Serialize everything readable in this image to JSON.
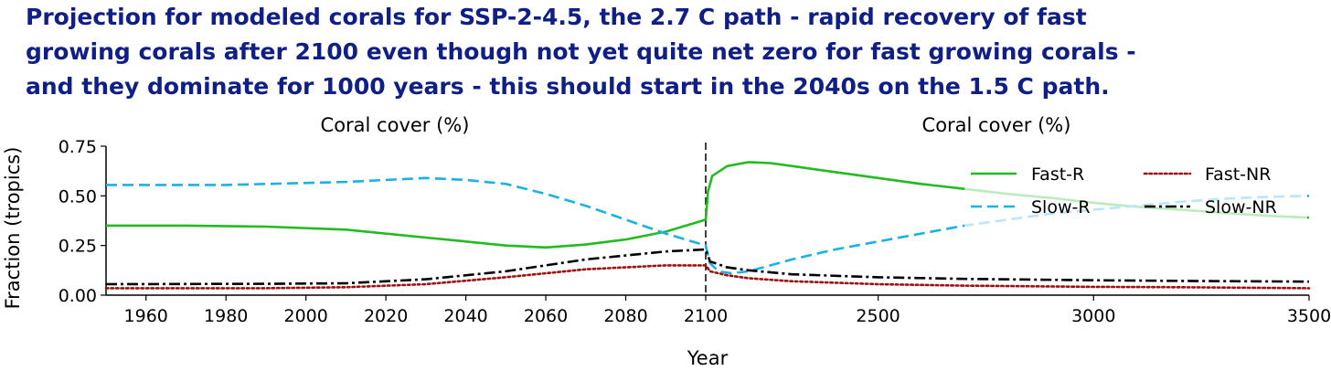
{
  "headline": {
    "lines": [
      "Projection for modeled corals for SSP-2-4.5, the 2.7 C path  - rapid recovery of fast",
      "growing corals after 2100 even though not yet quite net zero for fast growing corals -",
      "and they dominate for 1000 years - this should start in the 2040s on the 1.5 C path."
    ]
  },
  "chart_data": {
    "type": "line",
    "panel_titles": [
      "Coral cover (%)",
      "Coral cover (%)"
    ],
    "xlabel": "Year",
    "ylabel": "Fraction (tropics)",
    "ylim": [
      0,
      0.75
    ],
    "y_ticks": [
      0.0,
      0.25,
      0.5,
      0.75
    ],
    "y_tick_labels": [
      "0.00",
      "0.25",
      "0.50",
      "0.75"
    ],
    "grid": false,
    "legend_placement": "top-right",
    "panels": [
      {
        "xlim": [
          1950,
          2100
        ],
        "x_ticks": [
          1960,
          1980,
          2000,
          2020,
          2040,
          2060,
          2080,
          2100
        ],
        "x_tick_labels": [
          "1960",
          "1980",
          "2000",
          "2020",
          "2040",
          "2060",
          "2080",
          "2100"
        ]
      },
      {
        "xlim": [
          2100,
          3500
        ],
        "x_ticks": [
          2500,
          3000,
          3500
        ],
        "x_tick_labels": [
          "2500",
          "3000",
          "3500"
        ]
      }
    ],
    "series": [
      {
        "name": "Fast-R",
        "color": "#22bb22",
        "dash": "solid",
        "x": [
          1950,
          1970,
          1990,
          2010,
          2030,
          2040,
          2050,
          2060,
          2070,
          2080,
          2090,
          2100,
          2105,
          2115,
          2150,
          2200,
          2250,
          2300,
          2400,
          2500,
          2600,
          2700,
          2800,
          2900,
          3000,
          3100,
          3200,
          3300,
          3400,
          3500
        ],
        "y": [
          0.35,
          0.35,
          0.345,
          0.33,
          0.29,
          0.27,
          0.25,
          0.24,
          0.255,
          0.28,
          0.32,
          0.38,
          0.52,
          0.6,
          0.65,
          0.67,
          0.665,
          0.65,
          0.62,
          0.59,
          0.56,
          0.535,
          0.51,
          0.49,
          0.465,
          0.445,
          0.43,
          0.415,
          0.4,
          0.39
        ]
      },
      {
        "name": "Slow-R",
        "color": "#1ab0e8",
        "dash": "dashed",
        "x": [
          1950,
          1980,
          2010,
          2030,
          2040,
          2050,
          2060,
          2070,
          2080,
          2090,
          2100,
          2110,
          2130,
          2160,
          2200,
          2250,
          2300,
          2400,
          2500,
          2600,
          2700,
          2800,
          2900,
          3000,
          3100,
          3200,
          3300,
          3400,
          3500
        ],
        "y": [
          0.555,
          0.555,
          0.57,
          0.59,
          0.58,
          0.56,
          0.51,
          0.45,
          0.38,
          0.31,
          0.25,
          0.16,
          0.12,
          0.11,
          0.12,
          0.15,
          0.18,
          0.23,
          0.27,
          0.31,
          0.35,
          0.38,
          0.41,
          0.43,
          0.45,
          0.47,
          0.485,
          0.495,
          0.5
        ]
      },
      {
        "name": "Fast-NR",
        "color": "#a01010",
        "dash": "dotted",
        "x": [
          1950,
          1990,
          2010,
          2030,
          2050,
          2070,
          2090,
          2100,
          2110,
          2150,
          2200,
          2300,
          2500,
          2700,
          3000,
          3200,
          3500
        ],
        "y": [
          0.035,
          0.035,
          0.04,
          0.055,
          0.09,
          0.13,
          0.15,
          0.15,
          0.12,
          0.1,
          0.085,
          0.07,
          0.055,
          0.048,
          0.042,
          0.04,
          0.035
        ]
      },
      {
        "name": "Slow-NR",
        "color": "#000000",
        "dash": "dashdot",
        "x": [
          1950,
          1990,
          2010,
          2030,
          2050,
          2070,
          2090,
          2100,
          2110,
          2150,
          2200,
          2300,
          2500,
          2700,
          3000,
          3200,
          3500
        ],
        "y": [
          0.055,
          0.057,
          0.06,
          0.08,
          0.12,
          0.18,
          0.22,
          0.23,
          0.17,
          0.14,
          0.125,
          0.105,
          0.09,
          0.082,
          0.075,
          0.072,
          0.068
        ]
      }
    ]
  }
}
